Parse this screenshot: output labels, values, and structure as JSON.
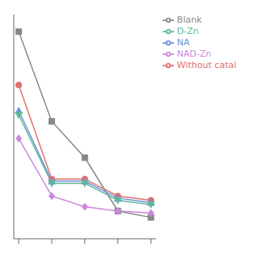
{
  "chart_data": {
    "type": "line",
    "x": [
      0,
      1,
      2,
      3,
      4
    ],
    "series": [
      {
        "name": "Blank",
        "color": "#888888",
        "marker": "square",
        "values": [
          0.97,
          0.55,
          0.38,
          0.13,
          0.1
        ]
      },
      {
        "name": "Without catal",
        "color": "#e07070",
        "marker": "circle",
        "values": [
          0.72,
          0.28,
          0.28,
          0.2,
          0.18
        ]
      },
      {
        "name": "NA",
        "color": "#7090dd",
        "marker": "triangle-up",
        "values": [
          0.6,
          0.27,
          0.27,
          0.19,
          0.17
        ]
      },
      {
        "name": "D-Zn",
        "color": "#60b898",
        "marker": "triangle-down",
        "values": [
          0.58,
          0.26,
          0.26,
          0.18,
          0.16
        ]
      },
      {
        "name": "NAD-Zn",
        "color": "#cc88dd",
        "marker": "diamond",
        "values": [
          0.47,
          0.2,
          0.15,
          0.13,
          0.12
        ]
      }
    ],
    "xlim": [
      -0.15,
      4.15
    ],
    "ylim": [
      0.0,
      1.05
    ],
    "xticks": [
      0,
      1,
      2,
      3,
      4
    ],
    "tick_labels": false,
    "grid": false,
    "legend": "upper right"
  }
}
